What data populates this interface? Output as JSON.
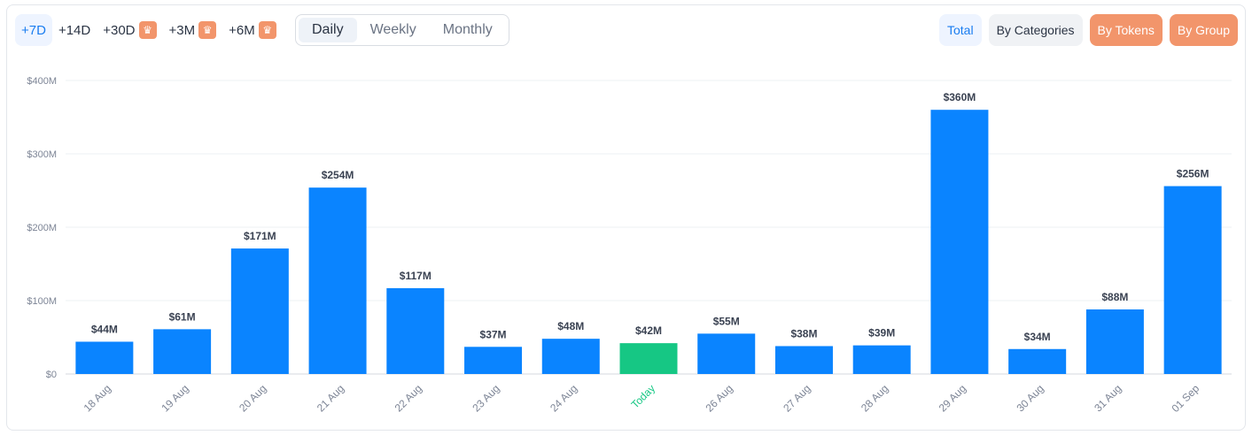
{
  "ranges": {
    "items": [
      {
        "label": "+7D",
        "active": true,
        "premium": false
      },
      {
        "label": "+14D",
        "active": false,
        "premium": false
      },
      {
        "label": "+30D",
        "active": false,
        "premium": true
      },
      {
        "label": "+3M",
        "active": false,
        "premium": true
      },
      {
        "label": "+6M",
        "active": false,
        "premium": true
      }
    ],
    "crown_icon": "crown-icon"
  },
  "period_toggle": {
    "daily": "Daily",
    "weekly": "Weekly",
    "monthly": "Monthly",
    "selected": "Daily"
  },
  "view_buttons": {
    "total": "Total",
    "by_categories": "By Categories",
    "by_tokens": "By Tokens",
    "by_group": "By Group"
  },
  "colors": {
    "bar": "#0a84ff",
    "bar_today": "#16c784",
    "accent": "#1a7df0",
    "premium": "#f2956b"
  },
  "chart_data": {
    "type": "bar",
    "categories": [
      "18 Aug",
      "19 Aug",
      "20 Aug",
      "21 Aug",
      "22 Aug",
      "23 Aug",
      "24 Aug",
      "Today",
      "26 Aug",
      "27 Aug",
      "28 Aug",
      "29 Aug",
      "30 Aug",
      "31 Aug",
      "01 Sep"
    ],
    "values": [
      44,
      61,
      171,
      254,
      117,
      37,
      48,
      42,
      55,
      38,
      39,
      360,
      34,
      88,
      256
    ],
    "data_labels": [
      "$44M",
      "$61M",
      "$171M",
      "$254M",
      "$117M",
      "$37M",
      "$48M",
      "$42M",
      "$55M",
      "$38M",
      "$39M",
      "$360M",
      "$34M",
      "$88M",
      "$256M"
    ],
    "highlight_category": "Today",
    "unit": "USD millions",
    "ylim": [
      0,
      400
    ],
    "yticks": [
      0,
      100,
      200,
      300,
      400
    ],
    "ytick_labels": [
      "$0",
      "$100M",
      "$200M",
      "$300M",
      "$400M"
    ],
    "title": "",
    "xlabel": "",
    "ylabel": "",
    "grid": true,
    "legend": false
  }
}
